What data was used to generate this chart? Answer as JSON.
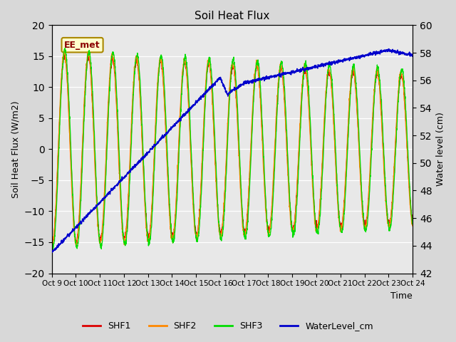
{
  "title": "Soil Heat Flux",
  "xlabel": "Time",
  "ylabel_left": "Soil Heat Flux (W/m2)",
  "ylabel_right": "Water level (cm)",
  "annotation": "EE_met",
  "ylim_left": [
    -20,
    20
  ],
  "ylim_right": [
    42,
    60
  ],
  "x_tick_labels": [
    "Oct 9",
    "Oct 10",
    "Oct 11",
    "Oct 12",
    "Oct 13",
    "Oct 14",
    "Oct 15",
    "Oct 16",
    "Oct 17",
    "Oct 18",
    "Oct 19",
    "Oct 20",
    "Oct 21",
    "Oct 22",
    "Oct 23",
    "Oct 24"
  ],
  "colors": {
    "SHF1": "#dd0000",
    "SHF2": "#ff8800",
    "SHF3": "#00dd00",
    "WaterLevel": "#0000cc"
  },
  "background_color": "#d8d8d8",
  "plot_bg_color": "#e8e8e8",
  "legend_labels": [
    "SHF1",
    "SHF2",
    "SHF3",
    "WaterLevel_cm"
  ]
}
